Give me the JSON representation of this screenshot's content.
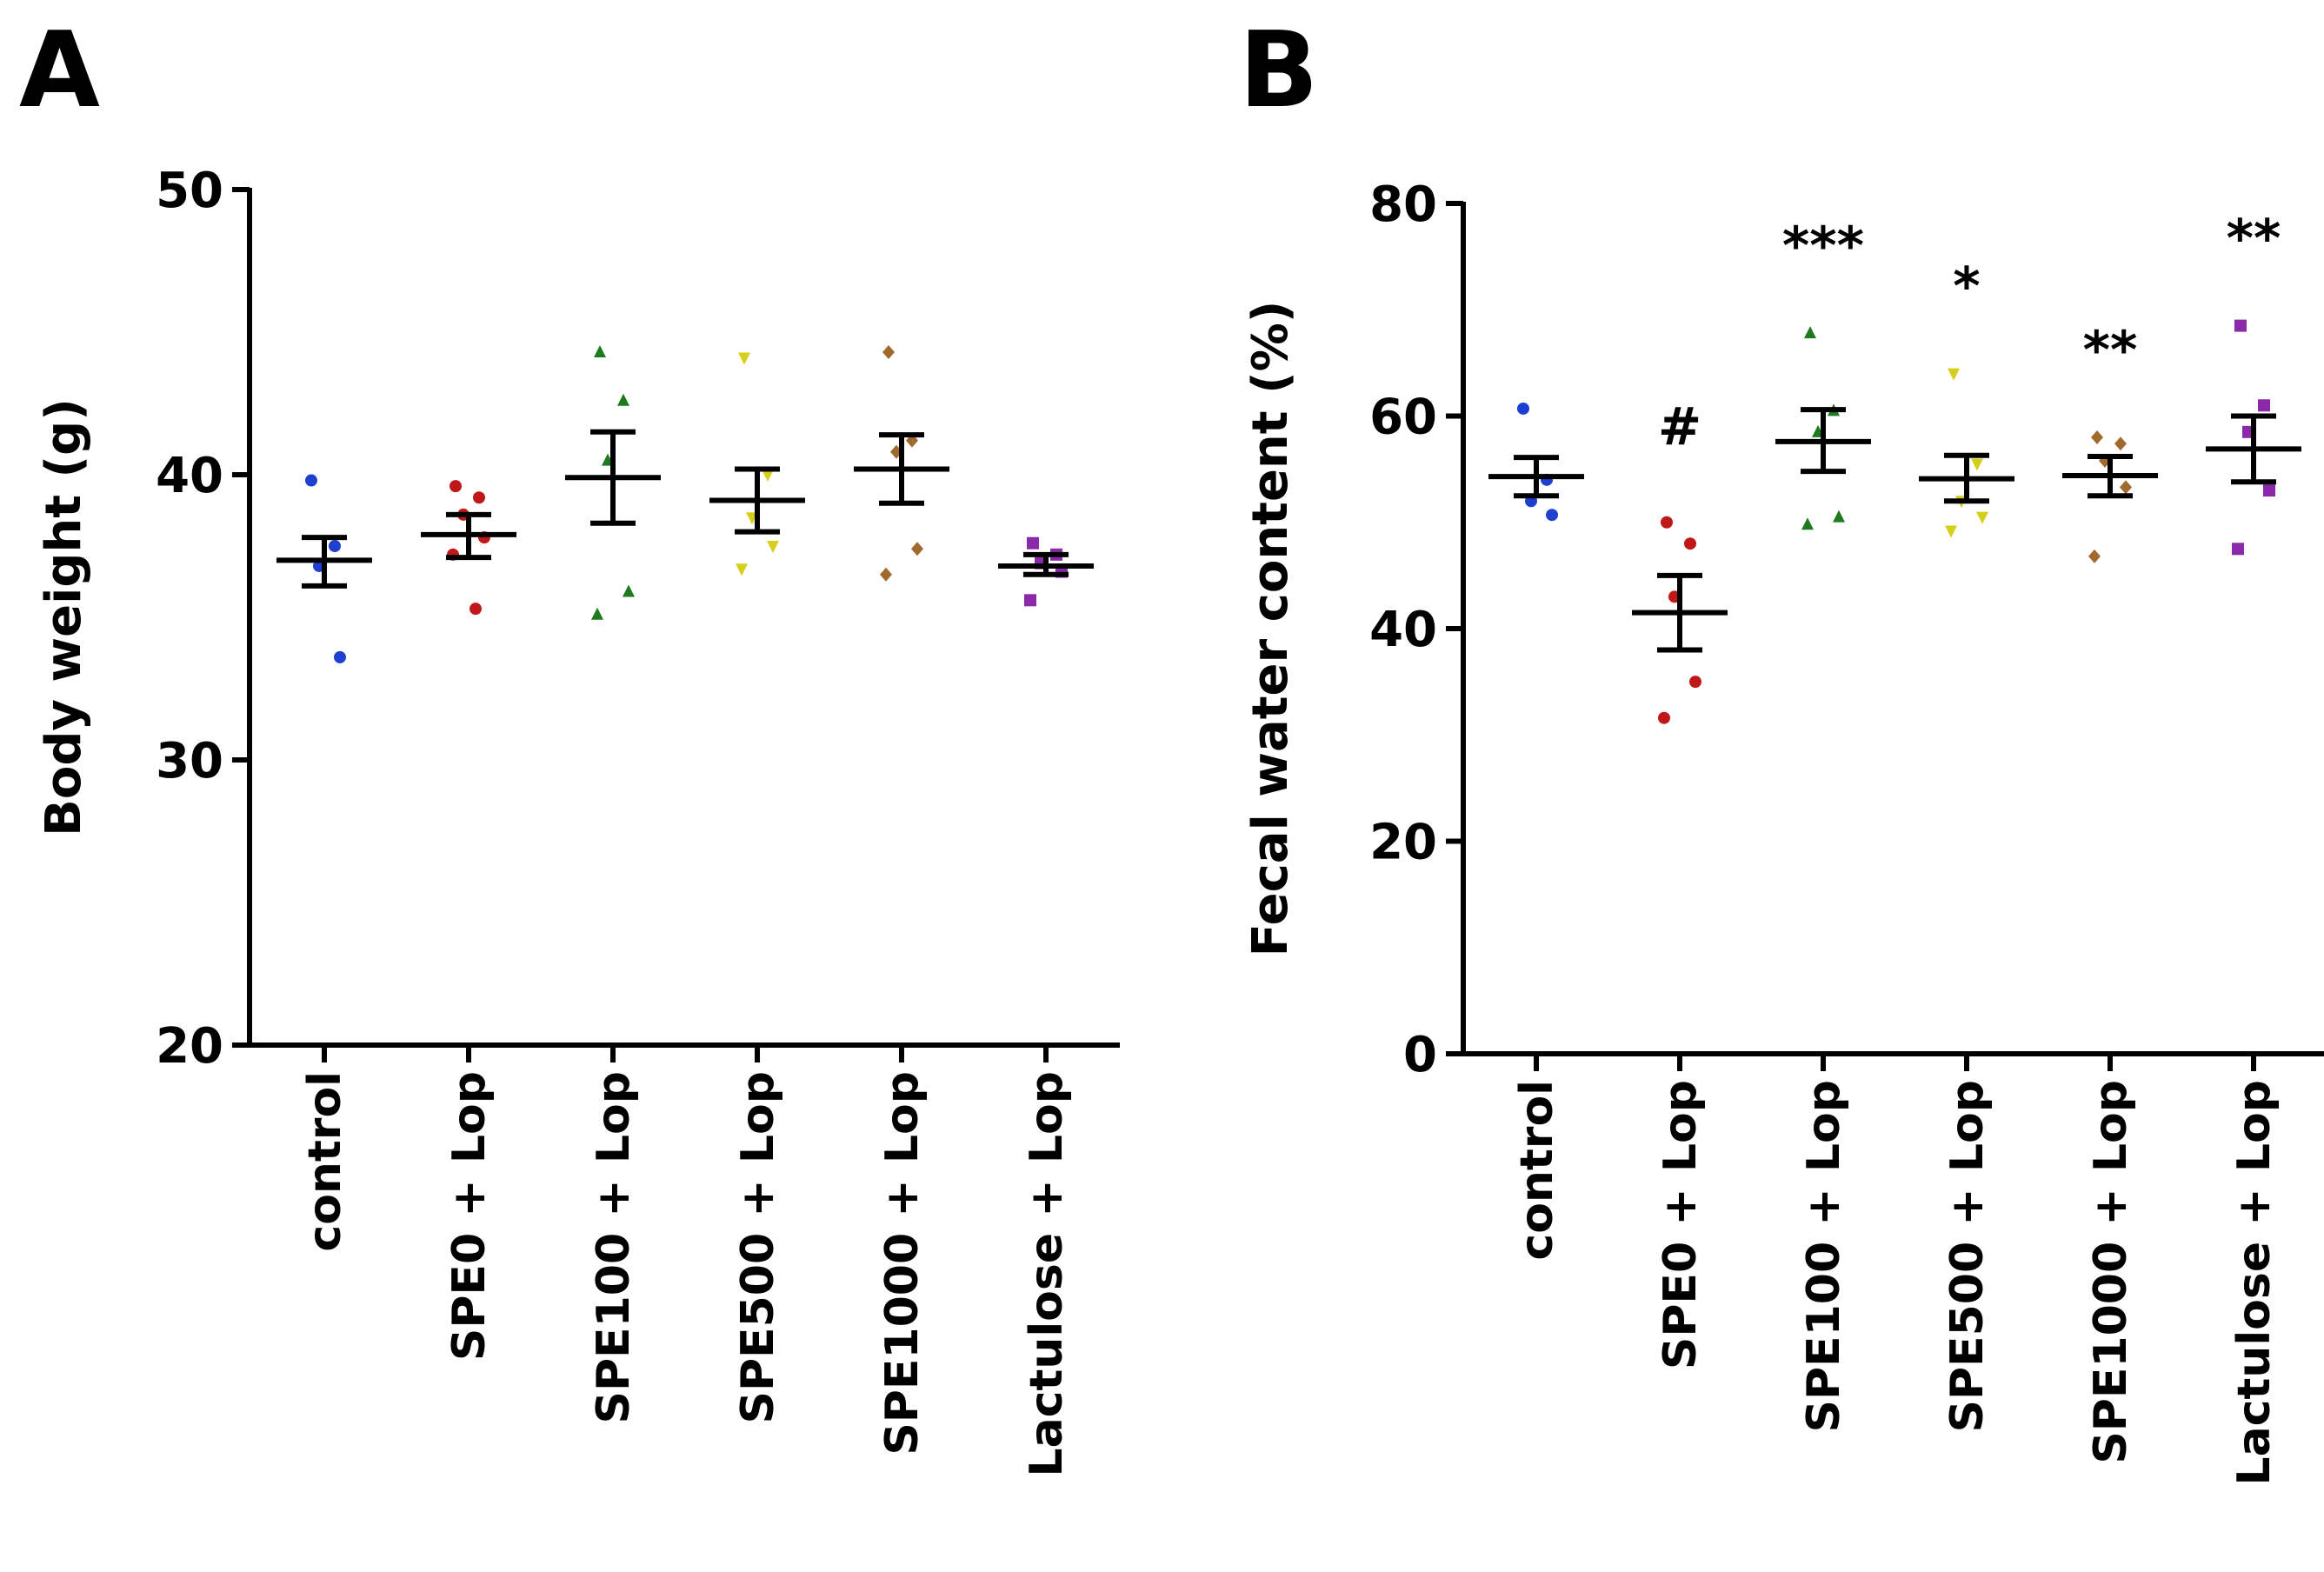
{
  "chart_data": [
    {
      "panel": "A",
      "type": "scatter",
      "title": "",
      "xlabel": "",
      "ylabel": "Body weight (g)",
      "ylim": [
        20,
        50
      ],
      "yticks": [
        20,
        30,
        40,
        50
      ],
      "categories": [
        "control",
        "SPE0 + Lop",
        "SPE100 + Lop",
        "SPE500 + Lop",
        "SPE1000 + Lop",
        "Lactulose + Lop"
      ],
      "colors": [
        "#1f3fd0",
        "#c01818",
        "#1e7a1e",
        "#d6cf1a",
        "#a06a2c",
        "#8a2aa8"
      ],
      "markers": [
        "circle",
        "circle",
        "triangle-up",
        "triangle-down",
        "diamond",
        "square"
      ],
      "groups": [
        {
          "name": "control",
          "points": [
            39.8,
            37.5,
            36.8,
            33.6
          ],
          "mean": 37.0,
          "sem_low": 36.1,
          "sem_high": 37.8,
          "sig": ""
        },
        {
          "name": "SPE0 + Lop",
          "points": [
            39.6,
            39.2,
            38.6,
            37.8,
            37.2,
            35.3
          ],
          "mean": 37.9,
          "sem_low": 37.1,
          "sem_high": 38.6,
          "sig": ""
        },
        {
          "name": "SPE100 + Lop",
          "points": [
            44.3,
            42.6,
            40.5,
            35.9,
            35.1
          ],
          "mean": 39.9,
          "sem_low": 38.3,
          "sem_high": 41.5,
          "sig": ""
        },
        {
          "name": "SPE500 + Lop",
          "points": [
            44.1,
            40.0,
            38.5,
            37.5,
            36.7
          ],
          "mean": 39.1,
          "sem_low": 38.0,
          "sem_high": 40.2,
          "sig": ""
        },
        {
          "name": "SPE1000 + Lop",
          "points": [
            44.3,
            41.2,
            40.8,
            37.4,
            36.5
          ],
          "mean": 40.2,
          "sem_low": 39.0,
          "sem_high": 41.4,
          "sig": ""
        },
        {
          "name": "Lactulose + Lop",
          "points": [
            37.6,
            37.2,
            36.9,
            36.6,
            35.6
          ],
          "mean": 36.8,
          "sem_low": 36.5,
          "sem_high": 37.2,
          "sig": ""
        }
      ]
    },
    {
      "panel": "B",
      "type": "scatter",
      "title": "",
      "xlabel": "",
      "ylabel": "Fecal water content (%)",
      "ylim": [
        0,
        80
      ],
      "yticks": [
        0,
        20,
        40,
        60,
        80
      ],
      "categories": [
        "control",
        "SPE0 + Lop",
        "SPE100 + Lop",
        "SPE500 + Lop",
        "SPE1000 + Lop",
        "Lactulose + Lop"
      ],
      "colors": [
        "#1f3fd0",
        "#c01818",
        "#1e7a1e",
        "#d6cf1a",
        "#a06a2c",
        "#8a2aa8"
      ],
      "markers": [
        "circle",
        "circle",
        "triangle-up",
        "triangle-down",
        "diamond",
        "square"
      ],
      "groups": [
        {
          "name": "control",
          "points": [
            60.7,
            54.0,
            52.0,
            50.7
          ],
          "mean": 54.3,
          "sem_low": 52.5,
          "sem_high": 56.1,
          "sig": ""
        },
        {
          "name": "SPE0 + Lop",
          "points": [
            50.0,
            48.0,
            43.0,
            35.0,
            31.6
          ],
          "mean": 41.5,
          "sem_low": 38.0,
          "sem_high": 45.0,
          "sig": "#"
        },
        {
          "name": "SPE100 + Lop",
          "points": [
            67.8,
            60.5,
            58.5,
            50.5,
            49.8
          ],
          "mean": 57.6,
          "sem_low": 54.8,
          "sem_high": 60.6,
          "sig": "***"
        },
        {
          "name": "SPE500 + Lop",
          "points": [
            64.0,
            55.5,
            52.0,
            50.5,
            49.2
          ],
          "mean": 54.1,
          "sem_low": 52.0,
          "sem_high": 56.3,
          "sig": "*"
        },
        {
          "name": "SPE1000 + Lop",
          "points": [
            58.0,
            57.4,
            55.8,
            53.3,
            46.8
          ],
          "mean": 54.4,
          "sem_low": 52.5,
          "sem_high": 56.2,
          "sig": "**"
        },
        {
          "name": "Lactulose + Lop",
          "points": [
            68.5,
            61.0,
            58.5,
            53.0,
            47.5
          ],
          "mean": 56.9,
          "sem_low": 53.8,
          "sem_high": 60.0,
          "sig": "**"
        }
      ]
    }
  ]
}
